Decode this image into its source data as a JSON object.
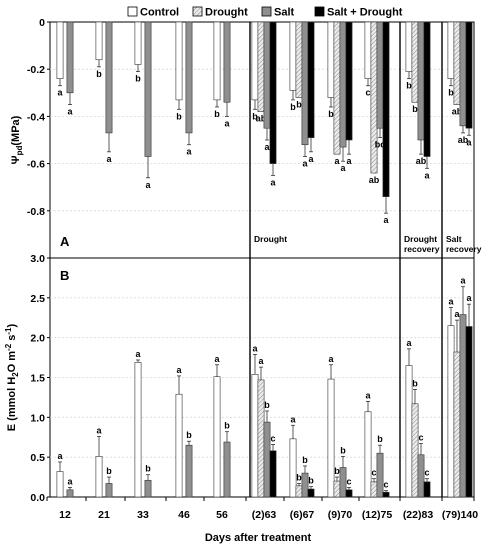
{
  "chart_data": {
    "type": "bar",
    "x_label": "Days after treatment",
    "categories": [
      "12",
      "21",
      "33",
      "46",
      "56",
      "(2)63",
      "(6)67",
      "(9)70",
      "(12)75",
      "(22)83",
      "(79)140"
    ],
    "legend": [
      {
        "name": "Control",
        "fill": "#ffffff"
      },
      {
        "name": "Drought",
        "fill": "#c6c6c6"
      },
      {
        "name": "Salt",
        "fill": "#8f8f8f"
      },
      {
        "name": "Salt + Drought",
        "fill": "#000000"
      }
    ],
    "phase_labels": [
      {
        "text": "Drought",
        "lines": [
          "Drought"
        ]
      },
      {
        "text": "Drought recovery",
        "lines": [
          "Drought",
          "recovery"
        ]
      },
      {
        "text": "Salt recovery",
        "lines": [
          "Salt",
          "recovery"
        ]
      }
    ],
    "panel_A": {
      "letter": "A",
      "ylabel": "Ψpd (MPa)",
      "ylim": [
        -1.0,
        0
      ],
      "yticks": [
        "0",
        "-0.2",
        "-0.4",
        "-0.6",
        "-0.8"
      ],
      "series": [
        {
          "name": "Control",
          "values": [
            -0.24,
            -0.16,
            -0.18,
            -0.33,
            -0.33,
            -0.33,
            -0.29,
            -0.32,
            -0.24,
            -0.21,
            -0.24
          ],
          "errors": [
            0.03,
            0.03,
            0.03,
            0.04,
            0.03,
            0.04,
            0.04,
            0.04,
            0.03,
            0.03,
            0.03
          ]
        },
        {
          "name": "Drought",
          "values": [
            null,
            null,
            null,
            null,
            null,
            -0.38,
            -0.32,
            -0.56,
            -0.64,
            -0.34,
            -0.35
          ]
        },
        {
          "name": "Salt",
          "values": [
            -0.3,
            -0.47,
            -0.57,
            -0.47,
            -0.34,
            -0.45,
            -0.52,
            -0.53,
            -0.45,
            -0.5,
            -0.44
          ],
          "errors": [
            0.05,
            0.08,
            0.09,
            0.05,
            0.06,
            0.05,
            0.05,
            0.06,
            0.04,
            0.06,
            0.03
          ]
        },
        {
          "name": "Salt + Drought",
          "values": [
            null,
            null,
            null,
            null,
            null,
            -0.6,
            -0.49,
            -0.5,
            -0.74,
            -0.57,
            -0.45
          ],
          "errors": [
            null,
            null,
            null,
            null,
            null,
            0.05,
            0.06,
            0.06,
            0.07,
            0.05,
            0.03
          ]
        }
      ],
      "letters": [
        [
          "a",
          null,
          "a",
          null
        ],
        [
          "b",
          null,
          "a",
          null
        ],
        [
          "b",
          null,
          "a",
          null
        ],
        [
          "b",
          null,
          "a",
          null
        ],
        [
          "b",
          null,
          "a",
          null
        ],
        [
          "b",
          "ab",
          "a",
          "a"
        ],
        [
          "b",
          "b",
          "a",
          "a"
        ],
        [
          "b",
          "a",
          "a",
          "a"
        ],
        [
          "c",
          "ab",
          "bc",
          "a"
        ],
        [
          "b",
          "b",
          "ab",
          "a"
        ],
        [
          "b",
          "ab",
          "ab",
          "a"
        ]
      ]
    },
    "panel_B": {
      "letter": "B",
      "ylabel": "E (mmol H2O m-2 s-1)",
      "ylim": [
        0,
        3.0
      ],
      "yticks": [
        "0.0",
        "0.5",
        "1.0",
        "1.5",
        "2.0",
        "2.5",
        "3.0"
      ],
      "series": [
        {
          "name": "Control",
          "values": [
            0.32,
            0.51,
            1.69,
            1.29,
            1.51,
            1.54,
            0.73,
            1.48,
            1.07,
            1.65,
            2.15
          ],
          "errors": [
            0.12,
            0.25,
            0.03,
            0.23,
            0.15,
            0.25,
            0.17,
            0.18,
            0.13,
            0.21,
            0.23
          ]
        },
        {
          "name": "Drought",
          "values": [
            null,
            null,
            null,
            null,
            null,
            1.47,
            0.14,
            0.2,
            0.19,
            1.17,
            1.82
          ],
          "errors": [
            null,
            null,
            null,
            null,
            null,
            0.16,
            0.03,
            0.05,
            0.04,
            0.18,
            0.4
          ]
        },
        {
          "name": "Salt",
          "values": [
            0.09,
            0.17,
            0.21,
            0.65,
            0.69,
            0.94,
            0.3,
            0.37,
            0.55,
            0.53,
            2.29
          ],
          "errors": [
            0.03,
            0.08,
            0.07,
            0.05,
            0.13,
            0.14,
            0.09,
            0.14,
            0.1,
            0.14,
            0.35
          ]
        },
        {
          "name": "Salt + Drought",
          "values": [
            null,
            null,
            null,
            null,
            null,
            0.58,
            0.1,
            0.09,
            0.06,
            0.19,
            2.14
          ],
          "errors": [
            null,
            null,
            null,
            null,
            null,
            0.08,
            0.03,
            0.03,
            0.02,
            0.04,
            0.28
          ]
        }
      ],
      "letters": [
        [
          "a",
          null,
          "a",
          null
        ],
        [
          "a",
          null,
          "b",
          null
        ],
        [
          "a",
          null,
          "b",
          null
        ],
        [
          "a",
          null,
          "b",
          null
        ],
        [
          "a",
          null,
          "b",
          null
        ],
        [
          "a",
          "a",
          "b",
          "c"
        ],
        [
          "a",
          "b",
          "b",
          "b"
        ],
        [
          "a",
          "b",
          "b",
          "c"
        ],
        [
          "a",
          "c",
          "b",
          "c"
        ],
        [
          "a",
          "b",
          "c",
          "c"
        ],
        [
          "a",
          "a",
          "a",
          "a"
        ]
      ]
    }
  }
}
